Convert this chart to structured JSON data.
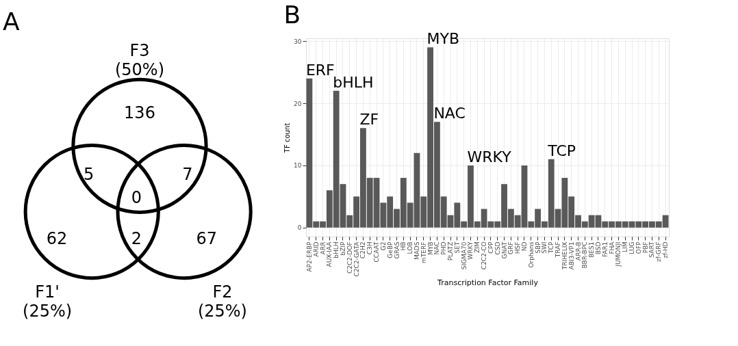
{
  "chart_data": [
    {
      "type": "other",
      "title": "A",
      "annotations": [
        "F3 (50%)",
        "F1' (25%)",
        "F2 (25%)",
        "136",
        "62",
        "67",
        "5",
        "7",
        "2",
        "0"
      ],
      "color": "#000000"
    },
    {
      "type": "bar",
      "title": "B",
      "xlabel": "Transcription Factor Family",
      "ylabel": "TF count",
      "color": "#595959",
      "categories": [
        "AP2-ERBP",
        "ARID",
        "ARR",
        "AUX-IAA",
        "bHLH",
        "bZIP",
        "C2C2-DOF",
        "C2C2-GATA",
        "C2H2",
        "C3H",
        "CCAAT",
        "G2",
        "GeBP",
        "GRAS",
        "HB",
        "LOB",
        "MADS",
        "mTERF",
        "MYB",
        "NAC",
        "PHD",
        "PLATZ",
        "SET",
        "SIGMA70",
        "WRKY",
        "ZIM",
        "C2C2-CO",
        "CPP",
        "CSD",
        "GNAT",
        "GRF",
        "HSF",
        "ND",
        "Orphans",
        "SBP",
        "SWI",
        "TCP",
        "TRAF",
        "TRIHELIX",
        "ABI3-VP1",
        "ARR-B",
        "BBR-BPC",
        "BES1",
        "BSD",
        "FAR1",
        "FHA",
        "JUMONJI",
        "LIM",
        "LUG",
        "OFP",
        "PBF",
        "SART",
        "zf-GRF",
        "zf-HD"
      ],
      "values": [
        24,
        1,
        1,
        6,
        22,
        7,
        2,
        5,
        16,
        8,
        8,
        4,
        5,
        3,
        8,
        4,
        12,
        5,
        29,
        17,
        5,
        2,
        4,
        1,
        10,
        1,
        3,
        1,
        1,
        7,
        3,
        2,
        10,
        1,
        3,
        1,
        11,
        3,
        8,
        5,
        2,
        1,
        2,
        2,
        1,
        1,
        1,
        1,
        1,
        1,
        1,
        1,
        1,
        2
      ],
      "ylim": [
        -1.45,
        30.45
      ],
      "yticks": [
        0,
        10,
        20,
        30
      ],
      "grid": true,
      "annotations": [
        {
          "text": "ERF",
          "x": "AP2-ERBP",
          "y": 24
        },
        {
          "text": "bHLH",
          "x": "bHLH",
          "y": 22
        },
        {
          "text": "ZF",
          "x": "C2H2",
          "y": 16
        },
        {
          "text": "MYB",
          "x": "MYB",
          "y": 29
        },
        {
          "text": "NAC",
          "x": "NAC",
          "y": 17
        },
        {
          "text": "WRKY",
          "x": "WRKY",
          "y": 10
        },
        {
          "text": "TCP",
          "x": "TCP",
          "y": 11
        }
      ]
    }
  ]
}
